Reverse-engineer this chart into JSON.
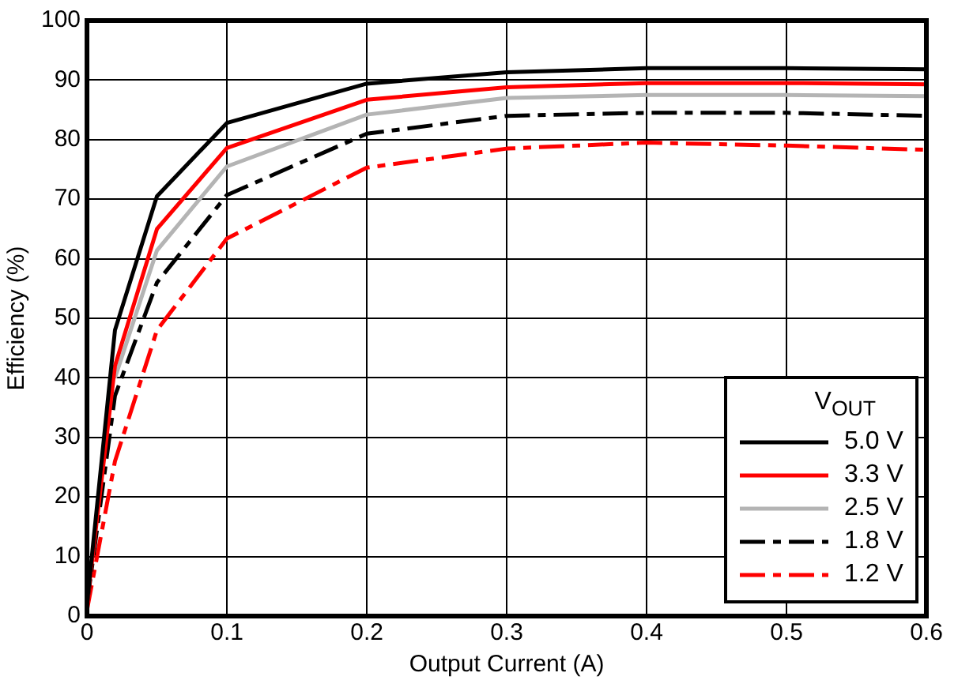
{
  "chart_data": {
    "type": "line",
    "xlabel": "Output Current (A)",
    "ylabel": "Efficiency (%)",
    "legend_title": "V$_{OUT}$",
    "x": [
      0,
      0.02,
      0.05,
      0.1,
      0.2,
      0.3,
      0.4,
      0.5,
      0.6
    ],
    "series": [
      {
        "name": "5.0 V",
        "color": "#000000",
        "line_style": "solid",
        "values": [
          2,
          48,
          70.5,
          82.8,
          89.4,
          91.3,
          92,
          92,
          91.8
        ]
      },
      {
        "name": "3.3 V",
        "color": "#ff0000",
        "line_style": "solid",
        "values": [
          2,
          42,
          65,
          78.6,
          86.7,
          88.8,
          89.5,
          89.5,
          89.3
        ]
      },
      {
        "name": "2.5 V",
        "color": "#b4b4b4",
        "line_style": "solid",
        "values": [
          null,
          40,
          61.4,
          75.5,
          84.2,
          87,
          87.5,
          87.5,
          87.3
        ]
      },
      {
        "name": "1.8 V",
        "color": "#000000",
        "line_style": "dashed",
        "values": [
          2,
          37,
          56,
          70.7,
          81,
          84,
          84.5,
          84.5,
          84
        ]
      },
      {
        "name": "1.2 V",
        "color": "#ff0000",
        "line_style": "dashed",
        "values": [
          1,
          26,
          48,
          63.4,
          75.3,
          78.5,
          79.5,
          79,
          78.3
        ]
      }
    ],
    "xlim": [
      0,
      0.6
    ],
    "xticks": [
      0,
      0.1,
      0.2,
      0.3,
      0.4,
      0.5,
      0.6
    ],
    "ylim": [
      0,
      100
    ],
    "yticks": [
      0,
      10,
      20,
      30,
      40,
      50,
      60,
      70,
      80,
      90,
      100
    ],
    "grid": true,
    "legend": "bottom right",
    "marker": "none"
  }
}
